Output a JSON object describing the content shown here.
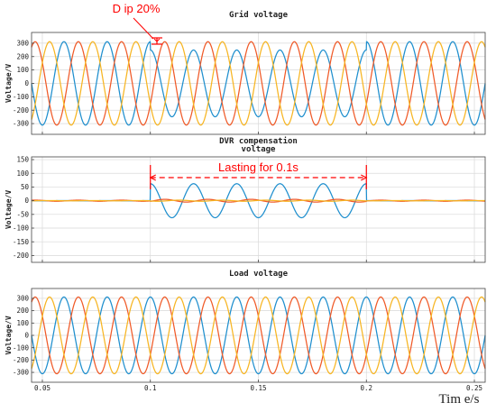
{
  "colors": {
    "phase_a": "#1f8fce",
    "phase_b": "#f05a28",
    "phase_c": "#f7b522",
    "annotation": "#ff0000",
    "grid": "#d9d9d9"
  },
  "chart_data": [
    {
      "type": "line",
      "title": "Grid voltage",
      "ylabel": "Voltage/V",
      "xlim": [
        0.045,
        0.255
      ],
      "ylim": [
        -380,
        380
      ],
      "yticks": [
        300,
        200,
        100,
        0,
        -100,
        -200,
        -300
      ],
      "xticks": [
        0.05,
        0.1,
        0.15,
        0.2,
        0.25
      ],
      "grid": true,
      "frequency_hz": 50,
      "series": [
        {
          "amplitude_nominal": 311,
          "amplitude_during_dip": 249,
          "phase_deg": 90
        },
        {
          "amplitude_nominal": 311,
          "amplitude_during_dip": 311,
          "phase_deg": -30
        },
        {
          "amplitude_nominal": 311,
          "amplitude_during_dip": 311,
          "phase_deg": 210
        }
      ],
      "dip_interval": [
        0.1,
        0.2
      ],
      "annotation": "D ip 20%"
    },
    {
      "type": "line",
      "title": "DVR compensation voltage",
      "ylabel": "Voltage/V",
      "xlim": [
        0.045,
        0.255
      ],
      "ylim": [
        -225,
        160
      ],
      "yticks": [
        150,
        100,
        50,
        0,
        -50,
        -100,
        -150,
        -200
      ],
      "xticks": [
        0.05,
        0.1,
        0.15,
        0.2,
        0.25
      ],
      "grid": true,
      "frequency_hz": 50,
      "series": [
        {
          "amplitude_during_dip": 62,
          "phase_deg": 90
        },
        {
          "amplitude_during_dip": 5,
          "phase_deg": -30
        },
        {
          "amplitude_during_dip": 2,
          "phase_deg": 210
        }
      ],
      "compensation_interval": [
        0.1,
        0.2
      ],
      "annotation": "Lasting for 0.1s"
    },
    {
      "type": "line",
      "title": "Load voltage",
      "ylabel": "Voltage/V",
      "xlabel": "Tim e/s",
      "xlim": [
        0.045,
        0.255
      ],
      "ylim": [
        -380,
        380
      ],
      "yticks": [
        300,
        200,
        100,
        0,
        -100,
        -200,
        -300
      ],
      "xticks": [
        0.05,
        0.1,
        0.15,
        0.2,
        0.25
      ],
      "xticklabels": [
        "0.05",
        "0.1",
        "0.15",
        "0.2",
        "0.25"
      ],
      "grid": true,
      "frequency_hz": 50,
      "series": [
        {
          "amplitude": 311,
          "phase_deg": 90
        },
        {
          "amplitude": 311,
          "phase_deg": -30
        },
        {
          "amplitude": 311,
          "phase_deg": 210
        }
      ]
    }
  ]
}
